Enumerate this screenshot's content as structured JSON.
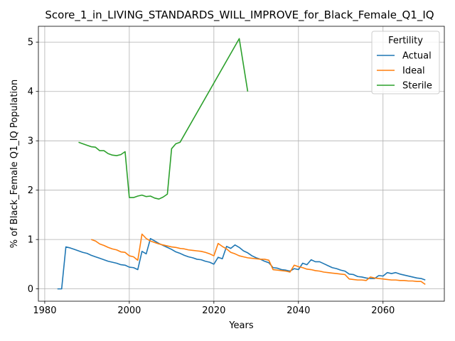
{
  "chart_data": {
    "type": "line",
    "title": "Score_1_in_LIVING_STANDARDS_WILL_IMPROVE_for_Black_Female_Q1_IQ",
    "xlabel": "Years",
    "ylabel": "% of Black_Female Q1_IQ Population",
    "xlim": [
      1978.5,
      2074.5
    ],
    "ylim": [
      -0.25,
      5.32
    ],
    "xticks": [
      1980,
      2000,
      2020,
      2040,
      2060
    ],
    "yticks": [
      0,
      1,
      2,
      3,
      4,
      5
    ],
    "grid": true,
    "legend": {
      "title": "Fertility",
      "placement": "top-right"
    },
    "series": [
      {
        "name": "Actual",
        "color": "#1f77b4",
        "points": [
          [
            1983,
            0.0
          ],
          [
            1984,
            0.0
          ],
          [
            1985,
            0.85
          ],
          [
            1986,
            0.83
          ],
          [
            1987,
            0.8
          ],
          [
            1988,
            0.77
          ],
          [
            1989,
            0.74
          ],
          [
            1990,
            0.72
          ],
          [
            1991,
            0.68
          ],
          [
            1992,
            0.65
          ],
          [
            1993,
            0.62
          ],
          [
            1994,
            0.59
          ],
          [
            1995,
            0.56
          ],
          [
            1996,
            0.54
          ],
          [
            1997,
            0.52
          ],
          [
            1998,
            0.49
          ],
          [
            1999,
            0.48
          ],
          [
            2000,
            0.44
          ],
          [
            2001,
            0.43
          ],
          [
            2002,
            0.39
          ],
          [
            2003,
            0.76
          ],
          [
            2004,
            0.71
          ],
          [
            2005,
            1.02
          ],
          [
            2006,
            0.97
          ],
          [
            2007,
            0.92
          ],
          [
            2008,
            0.88
          ],
          [
            2009,
            0.84
          ],
          [
            2010,
            0.8
          ],
          [
            2011,
            0.75
          ],
          [
            2012,
            0.72
          ],
          [
            2013,
            0.68
          ],
          [
            2014,
            0.65
          ],
          [
            2015,
            0.63
          ],
          [
            2016,
            0.6
          ],
          [
            2017,
            0.59
          ],
          [
            2018,
            0.56
          ],
          [
            2019,
            0.54
          ],
          [
            2020,
            0.5
          ],
          [
            2021,
            0.64
          ],
          [
            2022,
            0.61
          ],
          [
            2023,
            0.86
          ],
          [
            2024,
            0.82
          ],
          [
            2025,
            0.89
          ],
          [
            2026,
            0.84
          ],
          [
            2027,
            0.77
          ],
          [
            2028,
            0.73
          ],
          [
            2029,
            0.67
          ],
          [
            2030,
            0.63
          ],
          [
            2031,
            0.6
          ],
          [
            2032,
            0.56
          ],
          [
            2033,
            0.53
          ],
          [
            2034,
            0.43
          ],
          [
            2035,
            0.42
          ],
          [
            2036,
            0.39
          ],
          [
            2037,
            0.38
          ],
          [
            2038,
            0.36
          ],
          [
            2039,
            0.41
          ],
          [
            2040,
            0.39
          ],
          [
            2041,
            0.52
          ],
          [
            2042,
            0.49
          ],
          [
            2043,
            0.59
          ],
          [
            2044,
            0.55
          ],
          [
            2045,
            0.55
          ],
          [
            2046,
            0.51
          ],
          [
            2047,
            0.47
          ],
          [
            2048,
            0.43
          ],
          [
            2049,
            0.41
          ],
          [
            2050,
            0.38
          ],
          [
            2051,
            0.36
          ],
          [
            2052,
            0.3
          ],
          [
            2053,
            0.29
          ],
          [
            2054,
            0.25
          ],
          [
            2055,
            0.24
          ],
          [
            2056,
            0.22
          ],
          [
            2057,
            0.21
          ],
          [
            2058,
            0.21
          ],
          [
            2059,
            0.27
          ],
          [
            2060,
            0.26
          ],
          [
            2061,
            0.33
          ],
          [
            2062,
            0.31
          ],
          [
            2063,
            0.33
          ],
          [
            2064,
            0.3
          ],
          [
            2065,
            0.28
          ],
          [
            2066,
            0.26
          ],
          [
            2067,
            0.24
          ],
          [
            2068,
            0.22
          ],
          [
            2069,
            0.21
          ],
          [
            2070,
            0.18
          ]
        ]
      },
      {
        "name": "Ideal",
        "color": "#ff7f0e",
        "points": [
          [
            1991,
            1.0
          ],
          [
            1992,
            0.97
          ],
          [
            1993,
            0.91
          ],
          [
            1994,
            0.88
          ],
          [
            1995,
            0.84
          ],
          [
            1996,
            0.81
          ],
          [
            1997,
            0.79
          ],
          [
            1998,
            0.75
          ],
          [
            1999,
            0.74
          ],
          [
            2000,
            0.67
          ],
          [
            2001,
            0.65
          ],
          [
            2002,
            0.58
          ],
          [
            2003,
            1.11
          ],
          [
            2004,
            1.02
          ],
          [
            2005,
            0.97
          ],
          [
            2006,
            0.94
          ],
          [
            2007,
            0.91
          ],
          [
            2008,
            0.89
          ],
          [
            2009,
            0.87
          ],
          [
            2010,
            0.85
          ],
          [
            2011,
            0.84
          ],
          [
            2012,
            0.82
          ],
          [
            2013,
            0.81
          ],
          [
            2014,
            0.79
          ],
          [
            2015,
            0.78
          ],
          [
            2016,
            0.77
          ],
          [
            2017,
            0.76
          ],
          [
            2018,
            0.74
          ],
          [
            2019,
            0.71
          ],
          [
            2020,
            0.67
          ],
          [
            2021,
            0.92
          ],
          [
            2022,
            0.86
          ],
          [
            2023,
            0.81
          ],
          [
            2024,
            0.74
          ],
          [
            2025,
            0.71
          ],
          [
            2026,
            0.67
          ],
          [
            2027,
            0.65
          ],
          [
            2028,
            0.63
          ],
          [
            2029,
            0.62
          ],
          [
            2030,
            0.61
          ],
          [
            2031,
            0.6
          ],
          [
            2032,
            0.6
          ],
          [
            2033,
            0.58
          ],
          [
            2034,
            0.39
          ],
          [
            2035,
            0.38
          ],
          [
            2036,
            0.37
          ],
          [
            2037,
            0.36
          ],
          [
            2038,
            0.34
          ],
          [
            2039,
            0.48
          ],
          [
            2040,
            0.45
          ],
          [
            2041,
            0.43
          ],
          [
            2042,
            0.4
          ],
          [
            2043,
            0.39
          ],
          [
            2044,
            0.37
          ],
          [
            2045,
            0.36
          ],
          [
            2046,
            0.34
          ],
          [
            2047,
            0.33
          ],
          [
            2048,
            0.32
          ],
          [
            2049,
            0.31
          ],
          [
            2050,
            0.3
          ],
          [
            2051,
            0.29
          ],
          [
            2052,
            0.2
          ],
          [
            2053,
            0.19
          ],
          [
            2054,
            0.18
          ],
          [
            2055,
            0.18
          ],
          [
            2056,
            0.17
          ],
          [
            2057,
            0.24
          ],
          [
            2058,
            0.22
          ],
          [
            2059,
            0.21
          ],
          [
            2060,
            0.2
          ],
          [
            2061,
            0.19
          ],
          [
            2062,
            0.18
          ],
          [
            2063,
            0.18
          ],
          [
            2064,
            0.17
          ],
          [
            2065,
            0.17
          ],
          [
            2066,
            0.16
          ],
          [
            2067,
            0.16
          ],
          [
            2068,
            0.15
          ],
          [
            2069,
            0.15
          ],
          [
            2070,
            0.09
          ]
        ]
      },
      {
        "name": "Sterile",
        "color": "#2ca02c",
        "points": [
          [
            1988,
            2.97
          ],
          [
            1989,
            2.94
          ],
          [
            1990,
            2.91
          ],
          [
            1991,
            2.88
          ],
          [
            1992,
            2.87
          ],
          [
            1993,
            2.8
          ],
          [
            1994,
            2.8
          ],
          [
            1995,
            2.74
          ],
          [
            1996,
            2.71
          ],
          [
            1997,
            2.7
          ],
          [
            1998,
            2.72
          ],
          [
            1999,
            2.78
          ],
          [
            2000,
            1.85
          ],
          [
            2001,
            1.85
          ],
          [
            2002,
            1.88
          ],
          [
            2003,
            1.9
          ],
          [
            2004,
            1.87
          ],
          [
            2005,
            1.88
          ],
          [
            2006,
            1.84
          ],
          [
            2007,
            1.82
          ],
          [
            2008,
            1.86
          ],
          [
            2009,
            1.92
          ],
          [
            2010,
            2.84
          ],
          [
            2011,
            2.94
          ],
          [
            2012,
            2.97
          ],
          [
            2026,
            5.07
          ],
          [
            2028,
            4.0
          ]
        ]
      }
    ]
  }
}
